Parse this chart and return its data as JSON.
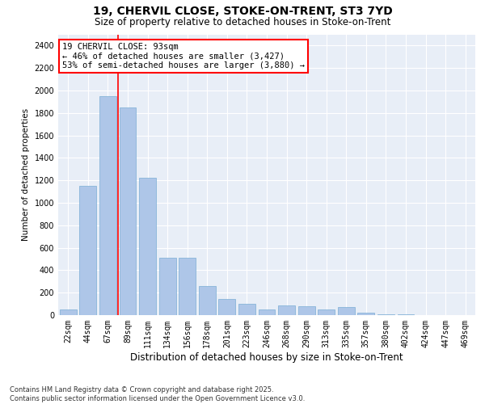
{
  "title_line1": "19, CHERVIL CLOSE, STOKE-ON-TRENT, ST3 7YD",
  "title_line2": "Size of property relative to detached houses in Stoke-on-Trent",
  "xlabel": "Distribution of detached houses by size in Stoke-on-Trent",
  "ylabel": "Number of detached properties",
  "categories": [
    "22sqm",
    "44sqm",
    "67sqm",
    "89sqm",
    "111sqm",
    "134sqm",
    "156sqm",
    "178sqm",
    "201sqm",
    "223sqm",
    "246sqm",
    "268sqm",
    "290sqm",
    "313sqm",
    "335sqm",
    "357sqm",
    "380sqm",
    "402sqm",
    "424sqm",
    "447sqm",
    "469sqm"
  ],
  "values": [
    50,
    1150,
    1950,
    1850,
    1220,
    510,
    510,
    260,
    145,
    100,
    50,
    85,
    80,
    50,
    75,
    20,
    10,
    5,
    3,
    2,
    1
  ],
  "bar_color": "#aec6e8",
  "bar_edgecolor": "#7aadd4",
  "vline_x_index": 2.5,
  "vline_color": "red",
  "annotation_text": "19 CHERVIL CLOSE: 93sqm\n← 46% of detached houses are smaller (3,427)\n53% of semi-detached houses are larger (3,880) →",
  "annotation_fontsize": 7.5,
  "ylim": [
    0,
    2500
  ],
  "yticks": [
    0,
    200,
    400,
    600,
    800,
    1000,
    1200,
    1400,
    1600,
    1800,
    2000,
    2200,
    2400
  ],
  "footnote": "Contains HM Land Registry data © Crown copyright and database right 2025.\nContains public sector information licensed under the Open Government Licence v3.0.",
  "bg_color": "#e8eef7",
  "fig_bg_color": "#ffffff",
  "title_fontsize": 10,
  "subtitle_fontsize": 8.5,
  "ylabel_fontsize": 7.5,
  "xlabel_fontsize": 8.5,
  "tick_fontsize": 7,
  "ytick_fontsize": 7
}
